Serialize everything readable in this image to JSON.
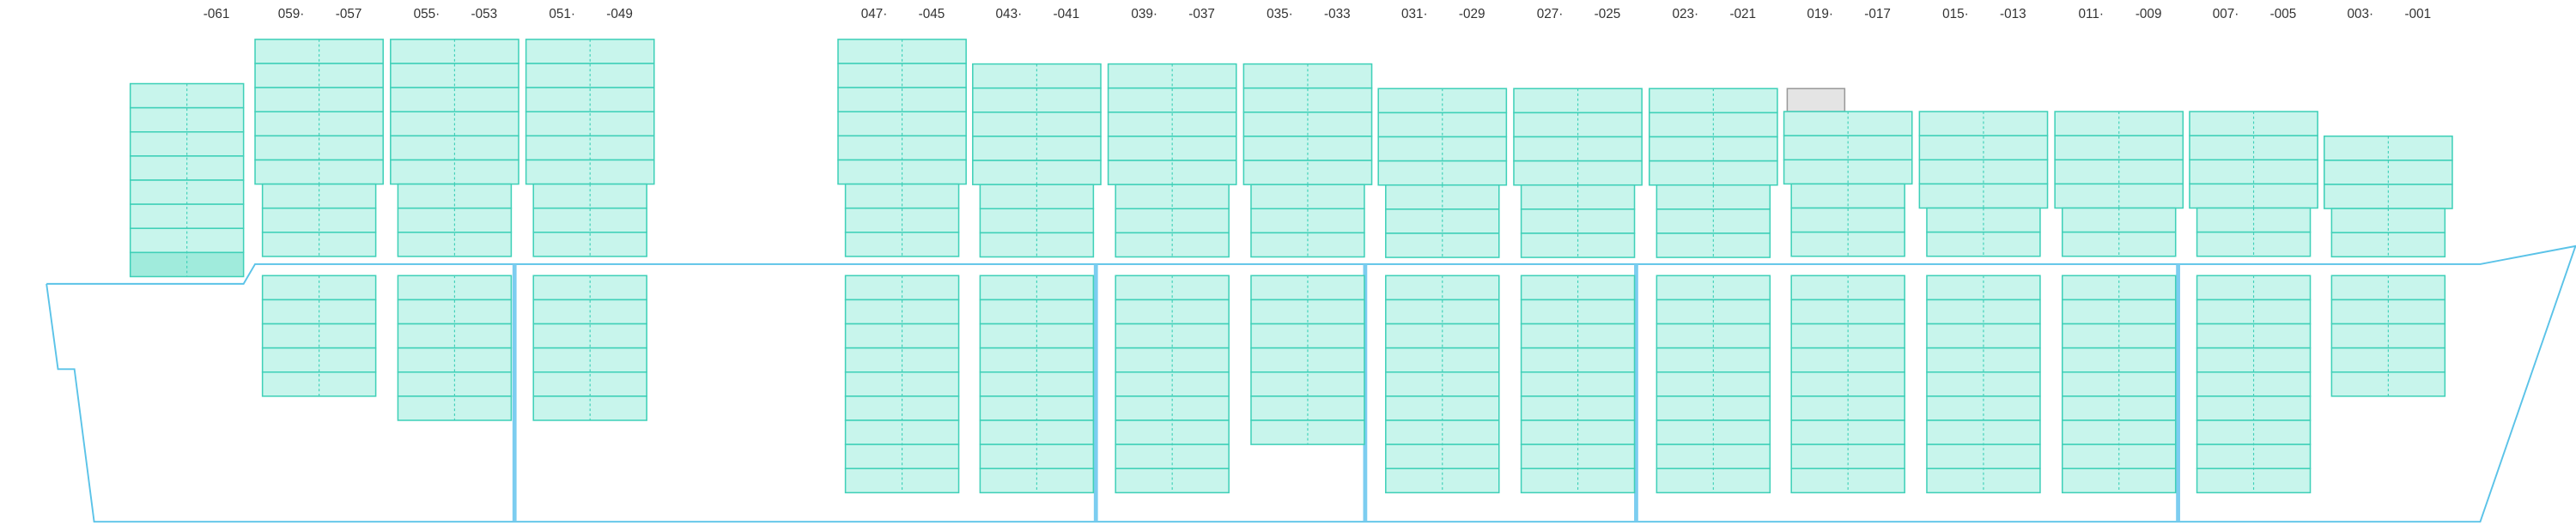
{
  "bays": [
    {
      "labels": [
        "-061"
      ]
    },
    {
      "labels": [
        "059·",
        "-057"
      ]
    },
    {
      "labels": [
        "055·",
        "-053"
      ]
    },
    {
      "labels": [
        "051·",
        "-049"
      ]
    },
    {
      "labels": [
        "047·",
        "-045"
      ]
    },
    {
      "labels": [
        "043·",
        "-041"
      ]
    },
    {
      "labels": [
        "039·",
        "-037"
      ]
    },
    {
      "labels": [
        "035·",
        "-033"
      ]
    },
    {
      "labels": [
        "031·",
        "-029"
      ]
    },
    {
      "labels": [
        "027·",
        "-025"
      ]
    },
    {
      "labels": [
        "023·",
        "-021"
      ]
    },
    {
      "labels": [
        "019·",
        "-017"
      ]
    },
    {
      "labels": [
        "015·",
        "-013"
      ]
    },
    {
      "labels": [
        "011·",
        "-009"
      ]
    },
    {
      "labels": [
        "007·",
        "-005"
      ]
    },
    {
      "labels": [
        "003·",
        "-001"
      ]
    }
  ]
}
